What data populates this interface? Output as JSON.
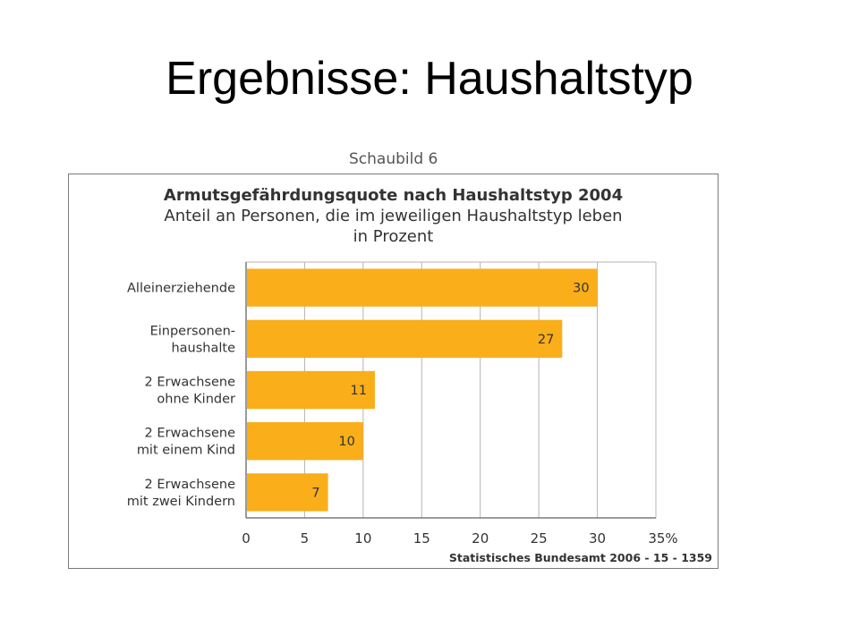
{
  "slide": {
    "title": "Ergebnisse: Haushaltstyp"
  },
  "figure": {
    "label": "Schaubild 6",
    "source": "Statistisches Bundesamt 2006 - 15 - 1359"
  },
  "chart_data": {
    "type": "bar",
    "orientation": "horizontal",
    "title": "Armutsgefährdungsquote nach Haushaltstyp 2004",
    "subtitle_lines": [
      "Anteil an Personen, die im jeweiligen Haushaltstyp leben",
      "in Prozent"
    ],
    "categories": [
      [
        "Alleinerziehende"
      ],
      [
        "Einpersonen-",
        "haushalte"
      ],
      [
        "2 Erwachsene",
        "ohne Kinder"
      ],
      [
        "2 Erwachsene",
        "mit einem Kind"
      ],
      [
        "2 Erwachsene",
        "mit zwei Kindern"
      ]
    ],
    "values": [
      30,
      27,
      11,
      10,
      7
    ],
    "xlim": [
      0,
      35
    ],
    "xticks": [
      "0",
      "5",
      "10",
      "15",
      "20",
      "25",
      "30",
      "35%"
    ],
    "grid": true,
    "bar_color": "#F9AE1A"
  }
}
